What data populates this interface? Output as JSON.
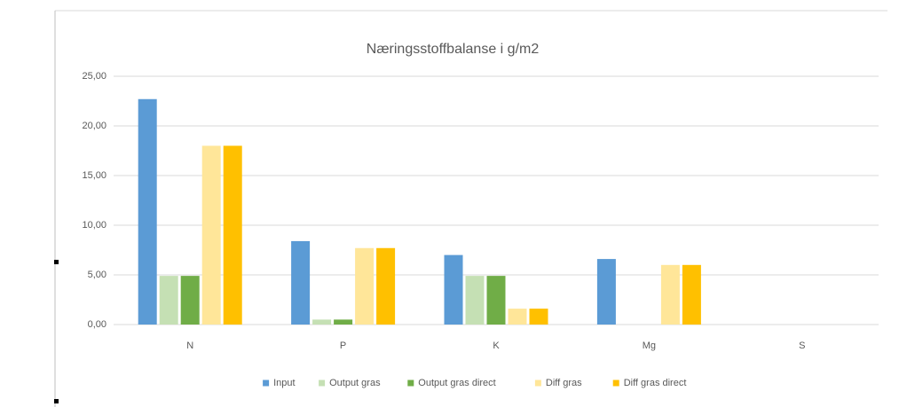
{
  "chart_data": {
    "type": "bar",
    "title": "Næringsstoffbalanse i g/m2",
    "categories": [
      "N",
      "P",
      "K",
      "Mg",
      "S"
    ],
    "series": [
      {
        "name": "Input",
        "color": "#5b9bd5",
        "values": [
          22.7,
          8.4,
          7.0,
          6.6,
          0
        ]
      },
      {
        "name": "Output gras",
        "color": "#c5e0b4",
        "values": [
          4.9,
          0.5,
          4.9,
          0,
          0
        ]
      },
      {
        "name": "Output gras direct",
        "color": "#70ad47",
        "values": [
          4.9,
          0.5,
          4.9,
          0,
          0
        ]
      },
      {
        "name": "Diff gras",
        "color": "#ffe699",
        "values": [
          18.0,
          7.7,
          1.6,
          6.0,
          0
        ]
      },
      {
        "name": "Diff gras direct",
        "color": "#ffc000",
        "values": [
          18.0,
          7.7,
          1.6,
          6.0,
          0
        ]
      }
    ],
    "ylim": [
      0,
      25
    ],
    "yticks": [
      {
        "value": 0,
        "label": "0,00"
      },
      {
        "value": 5,
        "label": "5,00"
      },
      {
        "value": 10,
        "label": "10,00"
      },
      {
        "value": 15,
        "label": "15,00"
      },
      {
        "value": 20,
        "label": "20,00"
      },
      {
        "value": 25,
        "label": "25,00"
      }
    ],
    "grid": true,
    "legend": "bottom"
  }
}
